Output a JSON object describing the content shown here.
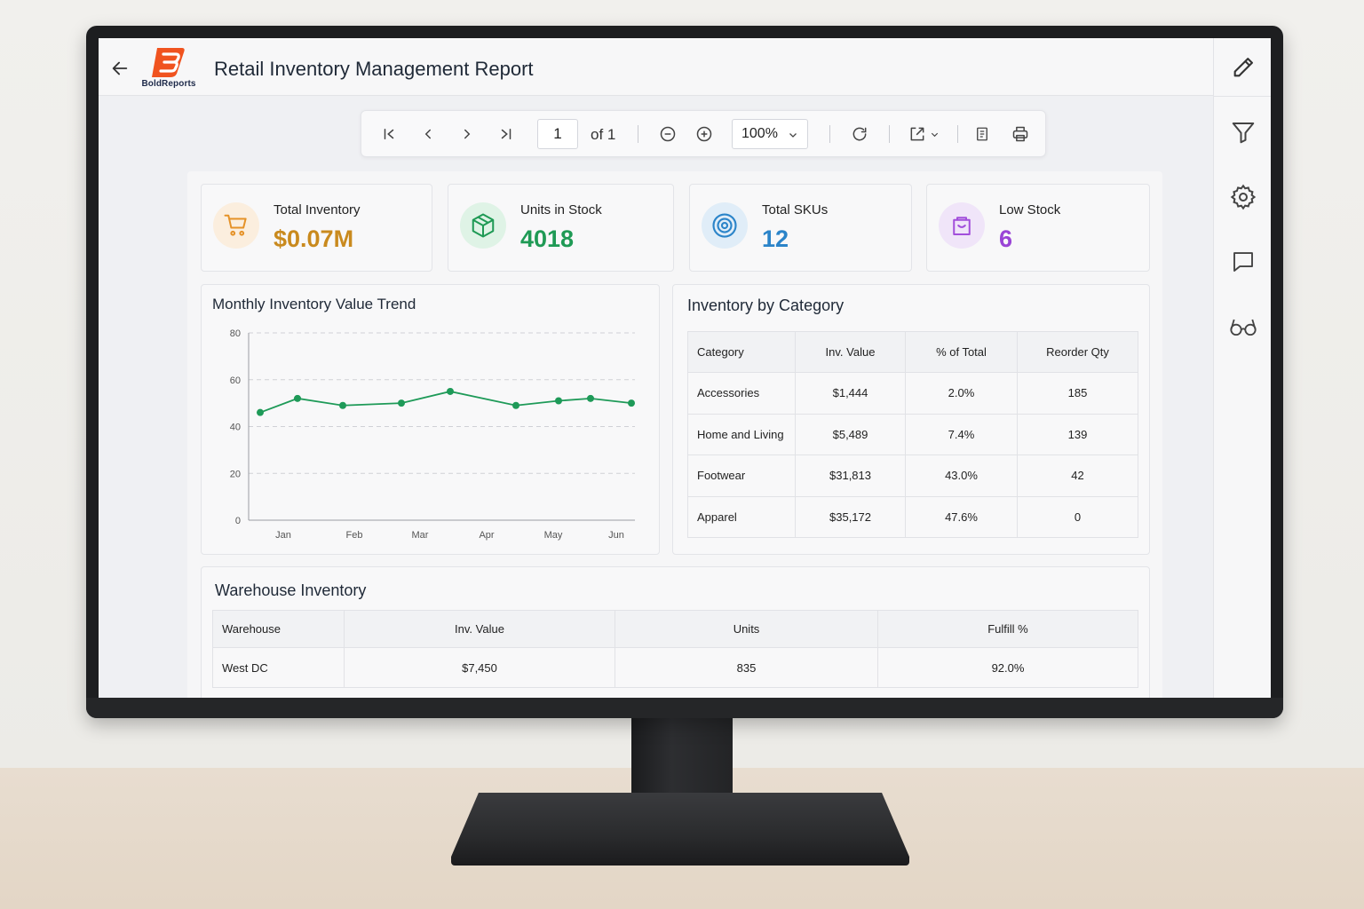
{
  "header": {
    "logo_text": "BoldReports",
    "title": "Retail Inventory Management Report"
  },
  "toolbar": {
    "page_current": "1",
    "page_of": "of 1",
    "zoom": "100%"
  },
  "kpis": [
    {
      "label": "Total Inventory",
      "value": "$0.07M",
      "icon": "cart-icon",
      "color": "#c98a1e"
    },
    {
      "label": "Units in Stock",
      "value": "4018",
      "icon": "box-icon",
      "color": "#1f9a55"
    },
    {
      "label": "Total SKUs",
      "value": "12",
      "icon": "target-icon",
      "color": "#2b84c9"
    },
    {
      "label": "Low Stock",
      "value": "6",
      "icon": "bag-icon",
      "color": "#9a45d6"
    }
  ],
  "trend": {
    "title": "Monthly Inventory Value Trend"
  },
  "chart_data": {
    "type": "line",
    "title": "Monthly Inventory Value Trend",
    "x_tick_labels": [
      "Jan",
      "Feb",
      "Mar",
      "Apr",
      "May",
      "Jun"
    ],
    "y_ticks": [
      0,
      20,
      40,
      60,
      80
    ],
    "ylim": [
      0,
      80
    ],
    "grid": true,
    "line_color": "#1e9a58",
    "series": [
      {
        "points": [
          {
            "x": "Jan",
            "y": 46
          },
          {
            "x": "Jan-Feb",
            "y": 52
          },
          {
            "x": "Feb-Mar",
            "y": 49
          },
          {
            "x": "Mar",
            "y": 50
          },
          {
            "x": "Mar-Apr",
            "y": 55
          },
          {
            "x": "Apr-May",
            "y": 49
          },
          {
            "x": "May",
            "y": 51
          },
          {
            "x": "May-Jun",
            "y": 52
          },
          {
            "x": "Jun",
            "y": 50
          }
        ]
      }
    ]
  },
  "category": {
    "title": "Inventory by Category",
    "headers": [
      "Category",
      "Inv. Value",
      "% of Total",
      "Reorder Qty"
    ],
    "rows": [
      [
        "Accessories",
        "$1,444",
        "2.0%",
        "185"
      ],
      [
        "Home and Living",
        "$5,489",
        "7.4%",
        "139"
      ],
      [
        "Footwear",
        "$31,813",
        "43.0%",
        "42"
      ],
      [
        "Apparel",
        "$35,172",
        "47.6%",
        "0"
      ]
    ]
  },
  "warehouse": {
    "title": "Warehouse Inventory",
    "headers": [
      "Warehouse",
      "Inv. Value",
      "Units",
      "Fulfill %"
    ],
    "rows": [
      [
        "West DC",
        "$7,450",
        "835",
        "92.0%"
      ]
    ]
  },
  "sidebar_right": [
    "pencil-icon",
    "filter-icon",
    "gear-icon",
    "comment-icon",
    "glasses-icon"
  ]
}
